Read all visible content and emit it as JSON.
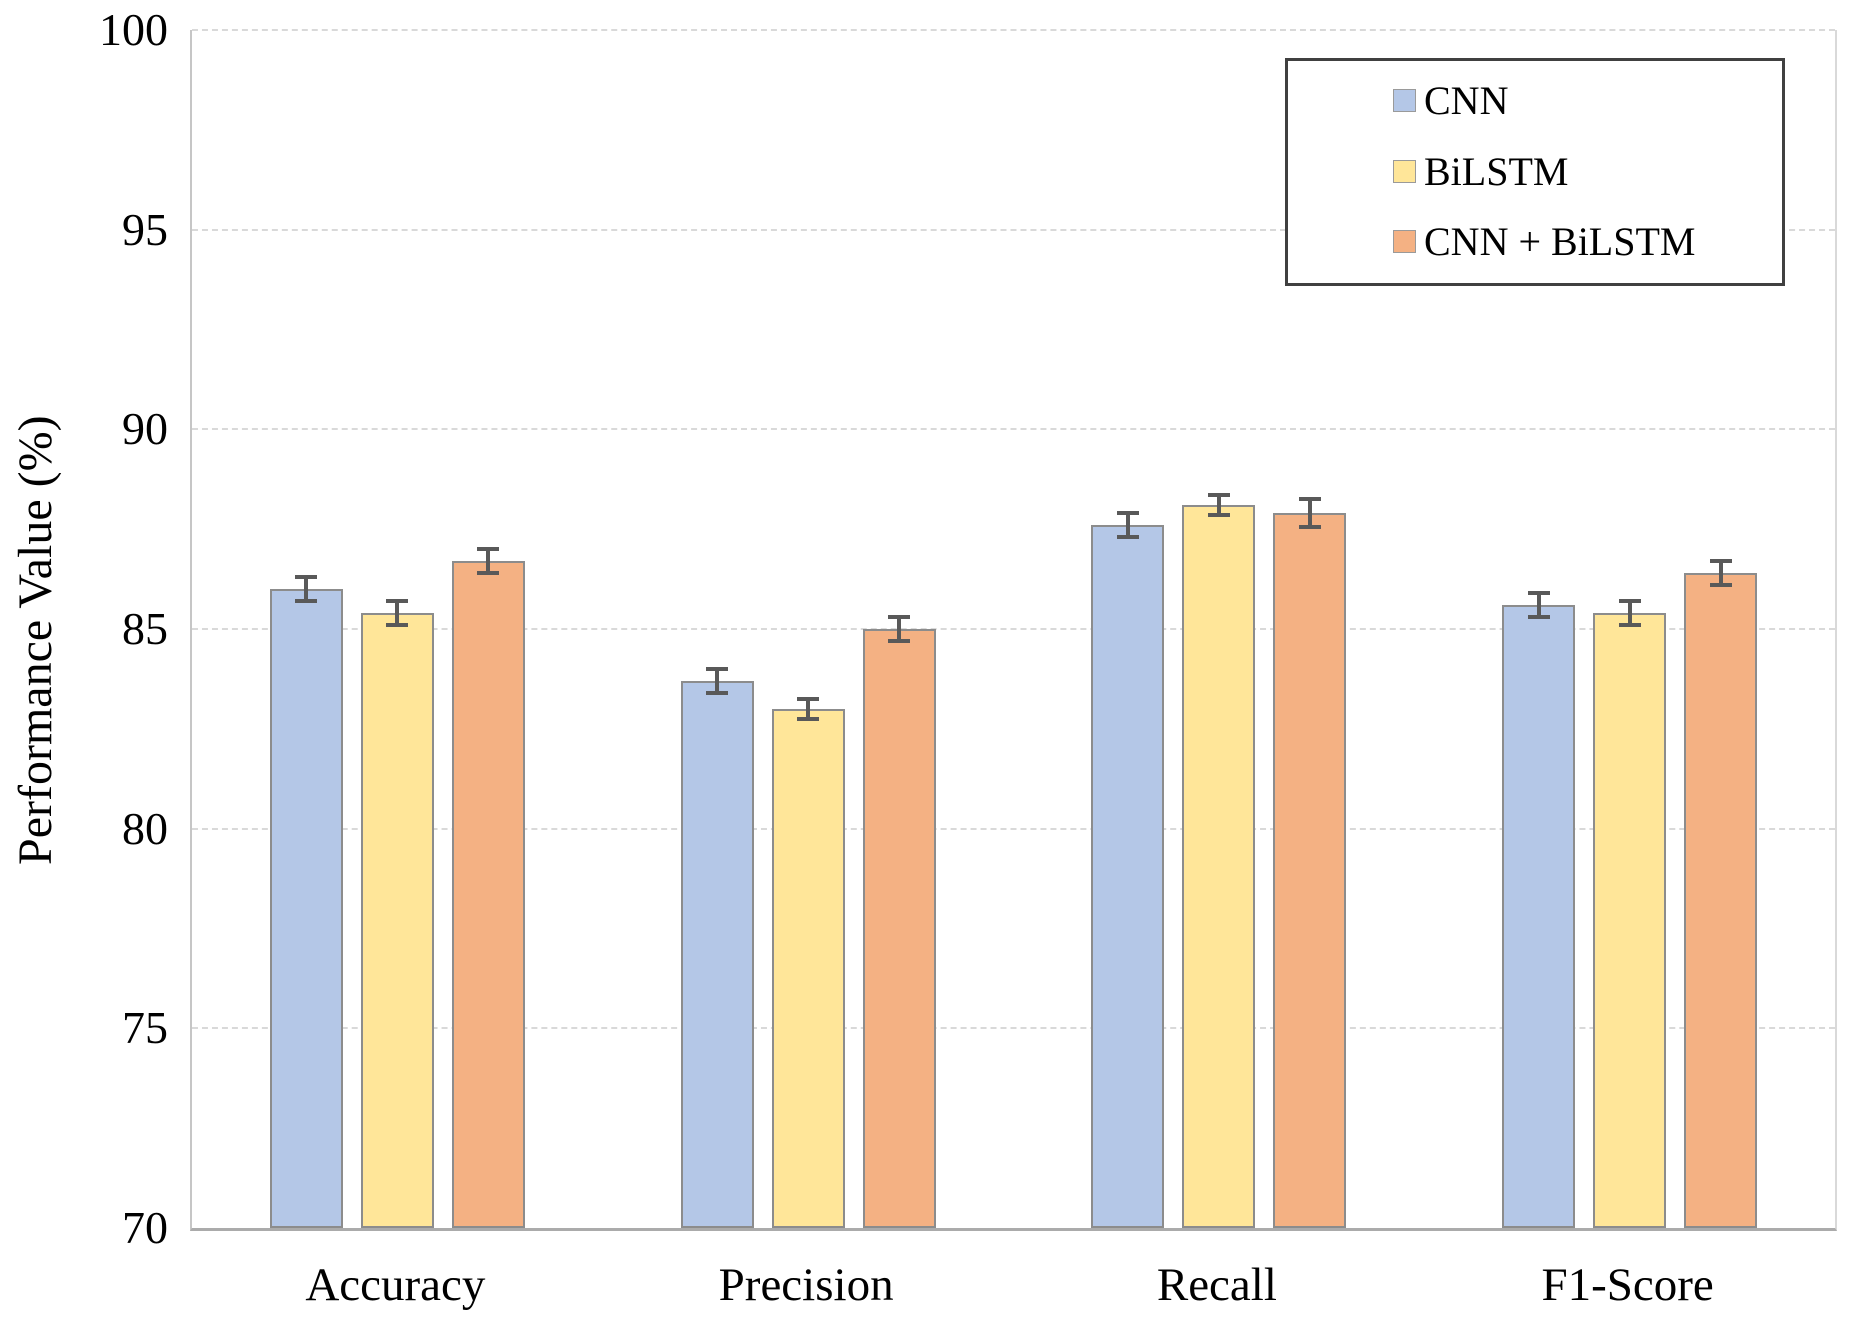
{
  "chart_data": {
    "type": "bar",
    "title": "",
    "xlabel": "",
    "ylabel": "Performance Value (%)",
    "ylim": [
      70,
      100
    ],
    "yticks": [
      70,
      75,
      80,
      85,
      90,
      95,
      100
    ],
    "grid": "horizontal-dashed",
    "legend_position": "top-right",
    "categories": [
      "Accuracy",
      "Precision",
      "Recall",
      "F1-Score"
    ],
    "series": [
      {
        "name": "CNN",
        "color": "#b4c7e7",
        "values": [
          86.0,
          83.7,
          87.6,
          85.6
        ],
        "errors": [
          0.3,
          0.3,
          0.3,
          0.3
        ]
      },
      {
        "name": "BiLSTM",
        "color": "#ffe699",
        "values": [
          85.4,
          83.0,
          88.1,
          85.4
        ],
        "errors": [
          0.3,
          0.25,
          0.25,
          0.3
        ]
      },
      {
        "name": "CNN + BiLSTM",
        "color": "#f4b183",
        "values": [
          86.7,
          85.0,
          87.9,
          86.4
        ],
        "errors": [
          0.3,
          0.3,
          0.35,
          0.3
        ]
      }
    ],
    "colors": {
      "bar_border": "#8c8c8c",
      "error_bar": "#595959",
      "gridline": "#d9d9d9",
      "axis_line": "#ababab",
      "legend_border": "#404040",
      "text": "#000000",
      "background": "#ffffff"
    }
  }
}
